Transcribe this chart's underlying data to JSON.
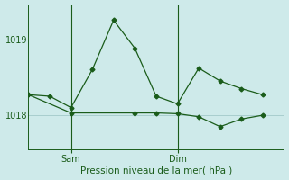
{
  "background_color": "#ceeaea",
  "grid_color": "#a8cece",
  "line_color": "#1a5c1a",
  "xlabel": "Pression niveau de la mer( hPa )",
  "ylim": [
    1017.55,
    1019.45
  ],
  "yticks": [
    1018,
    1019
  ],
  "xlim": [
    0,
    12
  ],
  "series1_x": [
    0,
    1,
    2,
    3,
    4,
    5,
    6,
    7,
    8,
    9,
    10,
    11
  ],
  "series1_y": [
    1018.27,
    1018.25,
    1018.1,
    1018.6,
    1019.25,
    1018.88,
    1018.25,
    1018.15,
    1018.62,
    1018.45,
    1018.35,
    1018.27
  ],
  "series2_x": [
    0,
    2,
    5,
    6,
    7,
    8,
    9,
    10,
    11
  ],
  "series2_y": [
    1018.27,
    1018.03,
    1018.03,
    1018.03,
    1018.02,
    1017.98,
    1017.85,
    1017.95,
    1018.0
  ],
  "sam_x": 2.0,
  "dim_x": 7.0,
  "xtick_positions": [
    2.0,
    7.0
  ],
  "xtick_labels": [
    "Sam",
    "Dim"
  ],
  "markersize": 2.5
}
